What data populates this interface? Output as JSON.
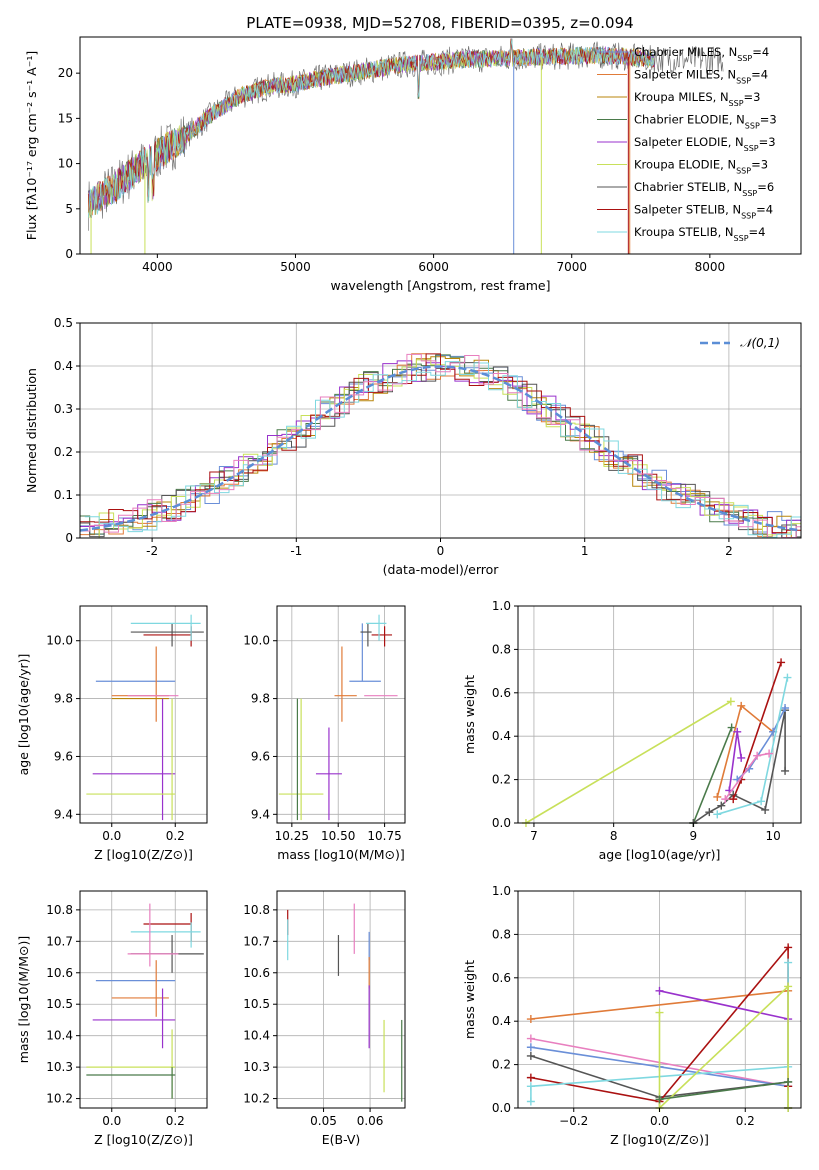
{
  "figure": {
    "title": "PLATE=0938, MJD=52708, FIBERID=0395, z=0.094"
  },
  "colors": {
    "chabrier_miles": "#6a8fd8",
    "salpeter_miles": "#e07b39",
    "kroupa_miles": "#b8860b",
    "chabrier_elodie": "#4a7a4a",
    "salpeter_elodie": "#9932cc",
    "kroupa_elodie": "#c8e05a",
    "chabrier_stelib": "#555555",
    "salpeter_stelib": "#aa1111",
    "kroupa_stelib": "#7fd8e0",
    "pink": "#e87fbf"
  },
  "chart_data": [
    {
      "id": "spectrum",
      "type": "line",
      "xlabel": "wavelength [Angstrom, rest frame]",
      "ylabel": "Flux [fλ10⁻¹⁷ erg cm⁻² s⁻¹ A⁻¹]",
      "xlim": [
        3440,
        8660
      ],
      "ylim": [
        0,
        24
      ],
      "xticks": [
        4000,
        5000,
        6000,
        7000,
        8000
      ],
      "yticks": [
        0,
        5,
        10,
        15,
        20
      ],
      "legend_position": "top-right",
      "legend": [
        "Chabrier MILES, N_SSP=4",
        "Salpeter MILES, N_SSP=4",
        "Kroupa MILES, N_SSP=3",
        "Chabrier ELODIE, N_SSP=3",
        "Salpeter ELODIE, N_SSP=3",
        "Kroupa ELODIE, N_SSP=3",
        "Chabrier STELIB, N_SSP=6",
        "Salpeter STELIB, N_SSP=4",
        "Kroupa STELIB, N_SSP=4"
      ],
      "x": [
        3500,
        3700,
        3900,
        4000,
        4200,
        4400,
        4600,
        4800,
        5000,
        5200,
        5400,
        5600,
        5800,
        6000,
        6200,
        6400,
        6600,
        6800,
        7000,
        7200,
        7400,
        7600
      ],
      "y": [
        5.5,
        7.5,
        10,
        11,
        13,
        15.5,
        17.5,
        18.5,
        18.8,
        19.5,
        20,
        20.5,
        21,
        21.2,
        21.5,
        21.6,
        21.7,
        21.8,
        21.9,
        22,
        21.8,
        21.5
      ]
    },
    {
      "id": "residual-histogram",
      "type": "line",
      "xlabel": "(data-model)/error",
      "ylabel": "Normed distribution",
      "xlim": [
        -2.5,
        2.5
      ],
      "ylim": [
        0,
        0.5
      ],
      "xticks": [
        -2,
        -1,
        0,
        1,
        2
      ],
      "yticks": [
        0.0,
        0.1,
        0.2,
        0.3,
        0.4,
        0.5
      ],
      "legend": [
        "𝒩(0,1)"
      ],
      "legend_position": "top-right",
      "grid": true
    },
    {
      "id": "age-vs-Z",
      "type": "scatter",
      "xlabel": "Z [log10(Z/Z⊙)]",
      "ylabel": "age  [log10(age/yr)]",
      "xlim": [
        -0.1,
        0.3
      ],
      "ylim": [
        9.37,
        10.12
      ],
      "xticks": [
        0.0,
        0.2
      ],
      "xticklabels": [
        "0.0",
        "0.2"
      ],
      "yticks": [
        9.4,
        9.6,
        9.8,
        10.0
      ],
      "yticklabels": [
        "9.4",
        "9.6",
        "9.8",
        "10.0"
      ],
      "points": [
        {
          "c": "chabrier_miles",
          "x": 0.1,
          "xe": [
            -0.05,
            0.2
          ],
          "y": 9.86,
          "ye": [
            9.86,
            9.86
          ]
        },
        {
          "c": "salpeter_miles",
          "x": 0.14,
          "xe": [
            0.0,
            0.18
          ],
          "y": 9.81,
          "ye": [
            9.72,
            9.98
          ]
        },
        {
          "c": "kroupa_miles",
          "x": 0.1,
          "xe": [
            0.0,
            0.18
          ],
          "y": 9.8,
          "ye": [
            9.8,
            9.8
          ]
        },
        {
          "c": "salpeter_elodie",
          "x": 0.16,
          "xe": [
            -0.06,
            0.2
          ],
          "y": 9.54,
          "ye": [
            9.38,
            9.8
          ]
        },
        {
          "c": "kroupa_elodie",
          "x": 0.19,
          "xe": [
            -0.08,
            0.2
          ],
          "y": 9.47,
          "ye": [
            9.38,
            9.8
          ]
        },
        {
          "c": "chabrier_stelib",
          "x": 0.19,
          "xe": [
            0.06,
            0.29
          ],
          "y": 10.03,
          "ye": [
            9.98,
            10.06
          ]
        },
        {
          "c": "salpeter_stelib",
          "x": 0.25,
          "xe": [
            0.1,
            0.25
          ],
          "y": 10.02,
          "ye": [
            9.98,
            10.05
          ]
        },
        {
          "c": "kroupa_stelib",
          "x": 0.25,
          "xe": [
            0.06,
            0.28
          ],
          "y": 10.06,
          "ye": [
            10.0,
            10.09
          ]
        },
        {
          "c": "pink",
          "x": 0.12,
          "xe": [
            0.05,
            0.21
          ],
          "y": 9.81,
          "ye": [
            9.81,
            9.81
          ]
        }
      ]
    },
    {
      "id": "age-vs-mass",
      "type": "scatter",
      "xlabel": "mass [log10(M/M⊙)]",
      "ylabel": "",
      "xlim": [
        10.17,
        10.86
      ],
      "ylim": [
        9.37,
        10.12
      ],
      "xticks": [
        10.25,
        10.5,
        10.75
      ],
      "xticklabels": [
        "10.25",
        "10.50",
        "10.75"
      ],
      "yticks": [
        9.4,
        9.6,
        9.8,
        10.0
      ],
      "yticklabels": [
        "9.4",
        "9.6",
        "9.8",
        "10.0"
      ],
      "points": [
        {
          "c": "chabrier_miles",
          "x": 10.63,
          "xe": [
            10.56,
            10.73
          ],
          "y": 9.86,
          "ye": [
            9.86,
            10.06
          ]
        },
        {
          "c": "salpeter_miles",
          "x": 10.52,
          "xe": [
            10.48,
            10.6
          ],
          "y": 9.81,
          "ye": [
            9.72,
            9.98
          ]
        },
        {
          "c": "salpeter_elodie",
          "x": 10.45,
          "xe": [
            10.38,
            10.52
          ],
          "y": 9.54,
          "ye": [
            9.38,
            9.7
          ]
        },
        {
          "c": "kroupa_elodie",
          "x": 10.3,
          "xe": [
            10.18,
            10.42
          ],
          "y": 9.47,
          "ye": [
            9.38,
            9.8
          ]
        },
        {
          "c": "chabrier_elodie",
          "x": 10.28,
          "xe": [
            10.28,
            10.28
          ],
          "y": 9.6,
          "ye": [
            9.38,
            9.8
          ]
        },
        {
          "c": "chabrier_stelib",
          "x": 10.66,
          "xe": [
            10.62,
            10.68
          ],
          "y": 10.03,
          "ye": [
            9.98,
            10.06
          ]
        },
        {
          "c": "salpeter_stelib",
          "x": 10.75,
          "xe": [
            10.68,
            10.79
          ],
          "y": 10.02,
          "ye": [
            9.98,
            10.05
          ]
        },
        {
          "c": "kroupa_stelib",
          "x": 10.72,
          "xe": [
            10.65,
            10.76
          ],
          "y": 10.06,
          "ye": [
            10.0,
            10.09
          ]
        },
        {
          "c": "pink",
          "x": 10.72,
          "xe": [
            10.64,
            10.82
          ],
          "y": 9.81,
          "ye": [
            9.81,
            9.81
          ]
        }
      ]
    },
    {
      "id": "mass-weight-vs-age",
      "type": "line",
      "xlabel": "age  [log10(age/yr)]",
      "ylabel": "mass weight",
      "xlim": [
        6.8,
        10.35
      ],
      "ylim": [
        0,
        1.0
      ],
      "xticks": [
        7,
        8,
        9,
        10
      ],
      "xticklabels": [
        "7",
        "8",
        "9",
        "10"
      ],
      "yticks": [
        0.0,
        0.2,
        0.4,
        0.6,
        0.8,
        1.0
      ],
      "yticklabels": [
        "0.0",
        "0.2",
        "0.4",
        "0.6",
        "0.8",
        "1.0"
      ],
      "grid": true,
      "series": [
        {
          "c": "chabrier_elodie",
          "x": [
            9.0,
            9.48
          ],
          "y": [
            0.0,
            0.44
          ]
        },
        {
          "c": "kroupa_elodie",
          "x": [
            6.9,
            9.47
          ],
          "y": [
            0.0,
            0.56
          ]
        },
        {
          "c": "chabrier_stelib",
          "x": [
            9.0,
            9.2,
            9.35,
            9.5,
            9.9,
            10.15,
            10.15
          ],
          "y": [
            0.0,
            0.05,
            0.08,
            0.13,
            0.06,
            0.52,
            0.24
          ]
        },
        {
          "c": "salpeter_stelib",
          "x": [
            9.5,
            9.6,
            10.1
          ],
          "y": [
            0.11,
            0.2,
            0.74
          ]
        },
        {
          "c": "salpeter_miles",
          "x": [
            9.3,
            9.6,
            10.0
          ],
          "y": [
            0.12,
            0.54,
            0.42
          ]
        },
        {
          "c": "salpeter_elodie",
          "x": [
            9.45,
            9.55,
            9.6
          ],
          "y": [
            0.15,
            0.42,
            0.3
          ]
        },
        {
          "c": "chabrier_miles",
          "x": [
            9.55,
            9.7,
            10.0,
            10.15
          ],
          "y": [
            0.2,
            0.25,
            0.42,
            0.53
          ]
        },
        {
          "c": "kroupa_stelib",
          "x": [
            9.3,
            9.85,
            10.18
          ],
          "y": [
            0.04,
            0.1,
            0.67
          ]
        },
        {
          "c": "pink",
          "x": [
            9.4,
            9.8,
            9.95
          ],
          "y": [
            0.11,
            0.31,
            0.32
          ]
        }
      ]
    },
    {
      "id": "mass-vs-Z",
      "type": "scatter",
      "xlabel": "Z [log10(Z/Z⊙)]",
      "ylabel": "mass [log10(M/M⊙)]",
      "xlim": [
        -0.1,
        0.3
      ],
      "ylim": [
        10.17,
        10.86
      ],
      "xticks": [
        0.0,
        0.2
      ],
      "xticklabels": [
        "0.0",
        "0.2"
      ],
      "yticks": [
        10.2,
        10.3,
        10.4,
        10.5,
        10.6,
        10.7,
        10.8
      ],
      "yticklabels": [
        "10.2",
        "10.3",
        "10.4",
        "10.5",
        "10.6",
        "10.7",
        "10.8"
      ],
      "points": [
        {
          "c": "chabrier_miles",
          "x": 0.1,
          "xe": [
            -0.05,
            0.2
          ],
          "y": 10.575,
          "ye": [
            10.575,
            10.575
          ]
        },
        {
          "c": "salpeter_miles",
          "x": 0.14,
          "xe": [
            0.0,
            0.18
          ],
          "y": 10.52,
          "ye": [
            10.46,
            10.64
          ]
        },
        {
          "c": "salpeter_elodie",
          "x": 0.16,
          "xe": [
            -0.06,
            0.2
          ],
          "y": 10.45,
          "ye": [
            10.36,
            10.55
          ]
        },
        {
          "c": "kroupa_elodie",
          "x": 0.19,
          "xe": [
            -0.08,
            0.2
          ],
          "y": 10.3,
          "ye": [
            10.2,
            10.42
          ]
        },
        {
          "c": "chabrier_elodie",
          "x": 0.19,
          "xe": [
            -0.08,
            0.2
          ],
          "y": 10.275,
          "ye": [
            10.2,
            10.3
          ]
        },
        {
          "c": "chabrier_stelib",
          "x": 0.19,
          "xe": [
            0.06,
            0.29
          ],
          "y": 10.66,
          "ye": [
            10.6,
            10.72
          ]
        },
        {
          "c": "salpeter_stelib",
          "x": 0.25,
          "xe": [
            0.1,
            0.25
          ],
          "y": 10.755,
          "ye": [
            10.7,
            10.79
          ]
        },
        {
          "c": "kroupa_stelib",
          "x": 0.25,
          "xe": [
            0.06,
            0.28
          ],
          "y": 10.73,
          "ye": [
            10.68,
            10.76
          ]
        },
        {
          "c": "pink",
          "x": 0.12,
          "xe": [
            0.05,
            0.21
          ],
          "y": 10.66,
          "ye": [
            10.62,
            10.82
          ]
        }
      ]
    },
    {
      "id": "mass-vs-EBV",
      "type": "scatter",
      "xlabel": "E(B-V)",
      "ylabel": "",
      "xlim": [
        0.04,
        0.0675
      ],
      "ylim": [
        10.17,
        10.86
      ],
      "xticks": [
        0.05,
        0.06
      ],
      "xticklabels": [
        "0.05",
        "0.06"
      ],
      "yticks": [
        10.2,
        10.3,
        10.4,
        10.5,
        10.6,
        10.7,
        10.8
      ],
      "yticklabels": [
        "10.2",
        "10.3",
        "10.4",
        "10.5",
        "10.6",
        "10.7",
        "10.8"
      ],
      "points": [
        {
          "c": "salpeter_stelib",
          "x": 0.0423,
          "xe": [
            0.0423,
            0.0423
          ],
          "y": 10.76,
          "ye": [
            10.72,
            10.8
          ]
        },
        {
          "c": "kroupa_stelib",
          "x": 0.0423,
          "xe": [
            0.0423,
            0.0423
          ],
          "y": 10.7,
          "ye": [
            10.64,
            10.77
          ]
        },
        {
          "c": "chabrier_stelib",
          "x": 0.0532,
          "xe": [
            0.0532,
            0.0532
          ],
          "y": 10.66,
          "ye": [
            10.59,
            10.72
          ]
        },
        {
          "c": "pink",
          "x": 0.0566,
          "xe": [
            0.0566,
            0.0566
          ],
          "y": 10.75,
          "ye": [
            10.66,
            10.82
          ]
        },
        {
          "c": "chabrier_miles",
          "x": 0.0598,
          "xe": [
            0.0598,
            0.0598
          ],
          "y": 10.69,
          "ye": [
            10.64,
            10.73
          ]
        },
        {
          "c": "salpeter_miles",
          "x": 0.0598,
          "xe": [
            0.0598,
            0.0598
          ],
          "y": 10.6,
          "ye": [
            10.55,
            10.65
          ]
        },
        {
          "c": "salpeter_elodie",
          "x": 0.0598,
          "xe": [
            0.0598,
            0.0598
          ],
          "y": 10.46,
          "ye": [
            10.36,
            10.56
          ]
        },
        {
          "c": "kroupa_elodie",
          "x": 0.063,
          "xe": [
            0.063,
            0.063
          ],
          "y": 10.34,
          "ye": [
            10.22,
            10.45
          ]
        },
        {
          "c": "chabrier_elodie",
          "x": 0.0668,
          "xe": [
            0.0668,
            0.0668
          ],
          "y": 10.33,
          "ye": [
            10.19,
            10.45
          ]
        }
      ]
    },
    {
      "id": "mass-weight-vs-Z",
      "type": "line",
      "xlabel": "Z [log10(Z/Z⊙)]",
      "ylabel": "mass weight",
      "xlim": [
        -0.33,
        0.33
      ],
      "ylim": [
        0,
        1.0
      ],
      "xticks": [
        -0.2,
        0.0,
        0.2
      ],
      "xticklabels": [
        "−0.2",
        "0.0",
        "0.2"
      ],
      "yticks": [
        0.0,
        0.2,
        0.4,
        0.6,
        0.8,
        1.0
      ],
      "yticklabels": [
        "0.0",
        "0.2",
        "0.4",
        "0.6",
        "0.8",
        "1.0"
      ],
      "grid": true,
      "series": [
        {
          "c": "salpeter_miles",
          "x": [
            -0.3,
            0.3
          ],
          "y": [
            0.41,
            0.54
          ]
        },
        {
          "c": "pink",
          "x": [
            -0.3,
            0.3
          ],
          "y": [
            0.32,
            0.1
          ]
        },
        {
          "c": "chabrier_miles",
          "x": [
            -0.3,
            0.0,
            0.3
          ],
          "y": [
            0.28,
            0.19,
            0.1
          ]
        },
        {
          "c": "chabrier_stelib",
          "x": [
            -0.3,
            0.0,
            0.3,
            0.3
          ],
          "y": [
            0.24,
            0.05,
            0.12,
            0.0
          ]
        },
        {
          "c": "salpeter_stelib",
          "x": [
            -0.3,
            0.0,
            0.3,
            0.3
          ],
          "y": [
            0.14,
            0.03,
            0.74,
            0.1
          ]
        },
        {
          "c": "kroupa_stelib",
          "x": [
            -0.3,
            -0.3,
            0.3,
            0.3
          ],
          "y": [
            0.03,
            0.1,
            0.19,
            0.67
          ]
        },
        {
          "c": "salpeter_elodie",
          "x": [
            0.0,
            0.3
          ],
          "y": [
            0.54,
            0.41
          ]
        },
        {
          "c": "kroupa_elodie",
          "x": [
            0.0,
            0.0,
            0.3,
            0.3
          ],
          "y": [
            0.44,
            0.0,
            0.56,
            0.0
          ]
        },
        {
          "c": "chabrier_elodie",
          "x": [
            0.0,
            0.3
          ],
          "y": [
            0.04,
            0.12
          ]
        }
      ]
    }
  ]
}
